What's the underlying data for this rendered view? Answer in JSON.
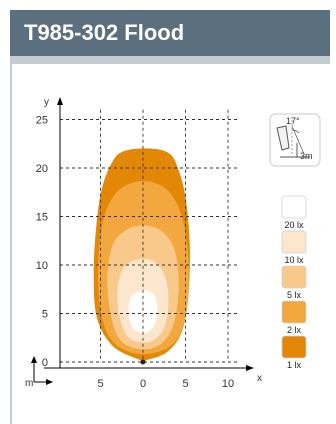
{
  "header": {
    "title": "T985-302 Flood"
  },
  "chart_data": {
    "type": "isolux-diagram",
    "x_label": "x",
    "y_label": "y",
    "unit_label": "m",
    "x_range": [
      -10,
      12
    ],
    "y_range": [
      -1,
      27
    ],
    "x_ticks": [
      {
        "value": -5,
        "label": "5"
      },
      {
        "value": 0,
        "label": "0"
      },
      {
        "value": 5,
        "label": "5"
      },
      {
        "value": 10,
        "label": "10"
      }
    ],
    "y_ticks": [
      0,
      5,
      10,
      15,
      20,
      25
    ],
    "mounting": {
      "tilt_label": "17°",
      "height_label": "3m"
    },
    "levels": [
      {
        "label": "20 lx",
        "color": "#ffffff",
        "contour": [
          [
            0,
            3
          ],
          [
            -1.2,
            3.5
          ],
          [
            -1.7,
            5
          ],
          [
            -1.5,
            6.5
          ],
          [
            -0.8,
            7.2
          ],
          [
            0.3,
            7.4
          ],
          [
            1.3,
            6.9
          ],
          [
            1.7,
            5.8
          ],
          [
            1.5,
            4.2
          ],
          [
            0.8,
            3.2
          ]
        ]
      },
      {
        "label": "10 lx",
        "color": "#fce7cc",
        "contour": [
          [
            0,
            2
          ],
          [
            -1.8,
            2.6
          ],
          [
            -2.8,
            4.8
          ],
          [
            -3,
            7.5
          ],
          [
            -2.2,
            9.8
          ],
          [
            -0.4,
            10.6
          ],
          [
            1.4,
            10.3
          ],
          [
            2.6,
            8.8
          ],
          [
            3,
            6.3
          ],
          [
            2.6,
            3.8
          ],
          [
            1.5,
            2.4
          ]
        ]
      },
      {
        "label": "5 lx",
        "color": "#f8c98a",
        "contour": [
          [
            0,
            1.3
          ],
          [
            -2.5,
            2.1
          ],
          [
            -3.7,
            4.5
          ],
          [
            -4.2,
            8.5
          ],
          [
            -3.6,
            12
          ],
          [
            -2,
            13.6
          ],
          [
            0,
            14.1
          ],
          [
            2.2,
            13.5
          ],
          [
            3.7,
            11.6
          ],
          [
            4.2,
            8
          ],
          [
            3.7,
            4.2
          ],
          [
            2.3,
            2
          ]
        ]
      },
      {
        "label": "2 lx",
        "color": "#f2a83e",
        "contour": [
          [
            0,
            0.8
          ],
          [
            -3.2,
            1.8
          ],
          [
            -4.8,
            4.5
          ],
          [
            -5.3,
            9.5
          ],
          [
            -4.7,
            14.5
          ],
          [
            -3.3,
            17.3
          ],
          [
            -1.2,
            18.5
          ],
          [
            1.3,
            18.5
          ],
          [
            3.4,
            17.2
          ],
          [
            4.8,
            14.2
          ],
          [
            5.4,
            9.2
          ],
          [
            4.9,
            4.3
          ],
          [
            3.3,
            1.7
          ]
        ]
      },
      {
        "label": "1 lx",
        "color": "#e38806",
        "contour": [
          [
            -0.3,
            0.2
          ],
          [
            -3.5,
            1.6
          ],
          [
            -5.4,
            4.5
          ],
          [
            -5.8,
            9
          ],
          [
            -5.5,
            14
          ],
          [
            -4.8,
            18
          ],
          [
            -3.5,
            20.8
          ],
          [
            -2,
            21.8
          ],
          [
            1,
            22
          ],
          [
            3.1,
            21.5
          ],
          [
            4.1,
            20
          ],
          [
            5,
            17
          ],
          [
            5.5,
            12
          ],
          [
            5.3,
            6.5
          ],
          [
            4.5,
            3
          ],
          [
            2.8,
            1
          ],
          [
            0.4,
            0.2
          ]
        ]
      }
    ]
  }
}
